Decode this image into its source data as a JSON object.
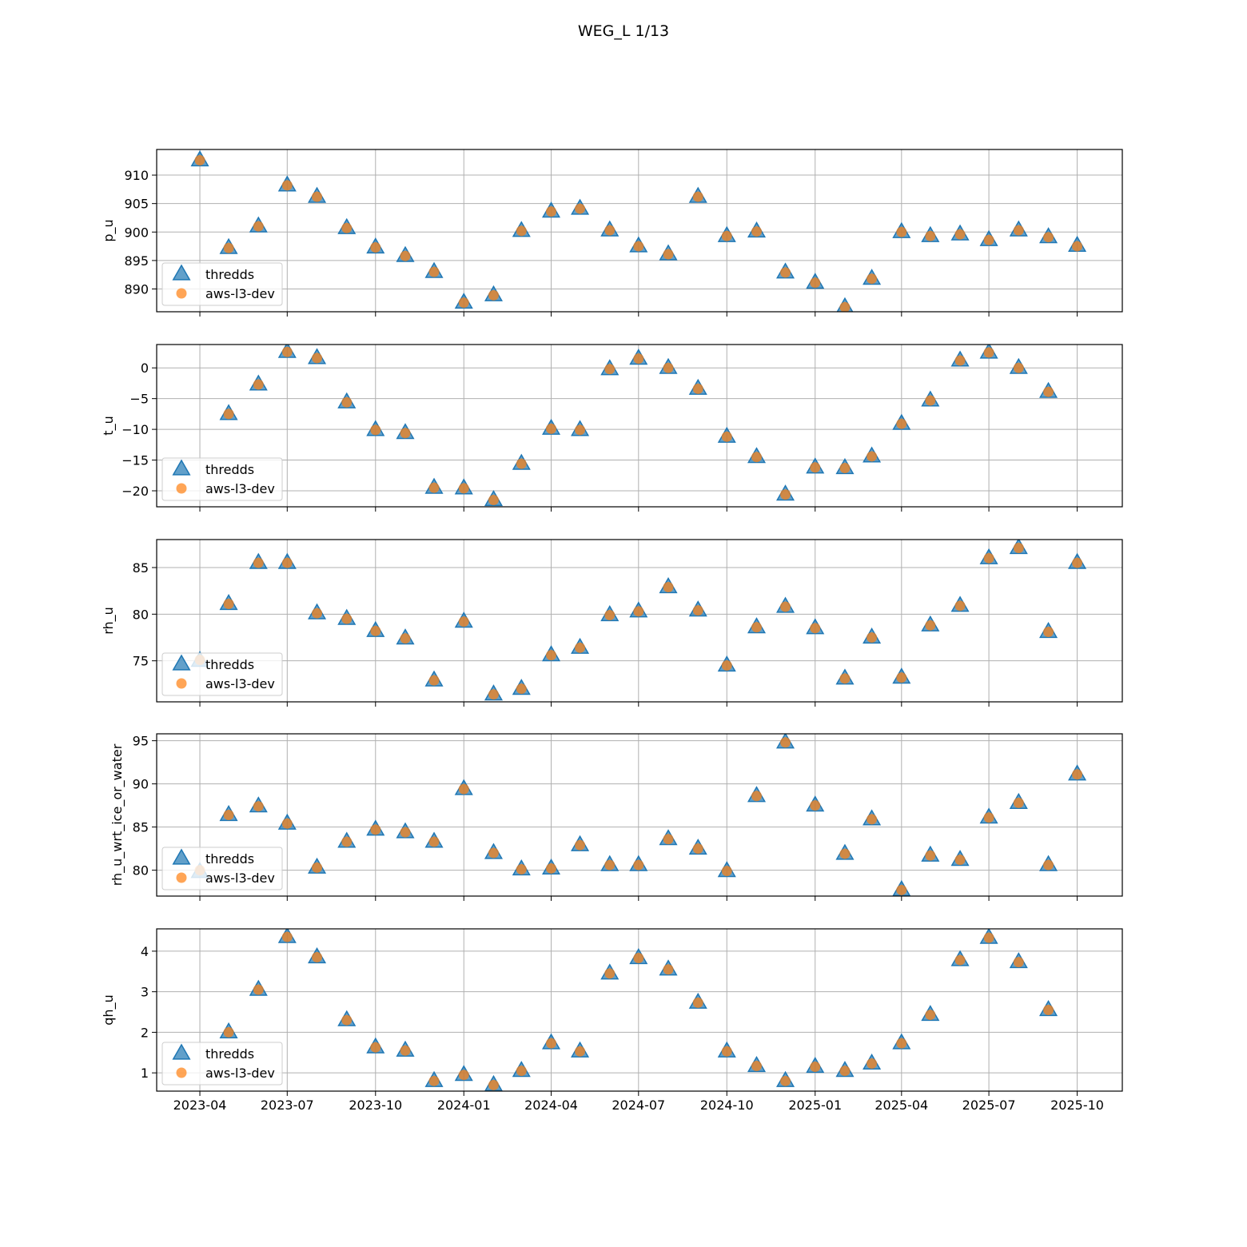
{
  "figure": {
    "title": "WEG_L 1/13"
  },
  "colors": {
    "thredds": "#1f77b4",
    "aws": "#ff7f0e",
    "grid": "#b0b0b0"
  },
  "chart_data": [
    {
      "type": "scatter",
      "ylabel": "p_u",
      "ylim": [
        886.0,
        914.5
      ],
      "yticks": [
        890,
        895,
        900,
        905,
        910
      ],
      "ytick_labels": [
        "890",
        "895",
        "900",
        "905",
        "910"
      ],
      "xlim": [
        "2023-02-15",
        "2025-11-17"
      ],
      "x": [
        "2023-04-01",
        "2023-05-01",
        "2023-06-01",
        "2023-07-01",
        "2023-08-01",
        "2023-09-01",
        "2023-10-01",
        "2023-11-01",
        "2023-12-01",
        "2024-01-01",
        "2024-02-01",
        "2024-03-01",
        "2024-04-01",
        "2024-05-01",
        "2024-06-01",
        "2024-07-01",
        "2024-08-01",
        "2024-09-01",
        "2024-10-01",
        "2024-11-01",
        "2024-12-01",
        "2025-01-01",
        "2025-02-01",
        "2025-03-01",
        "2025-04-01",
        "2025-05-01",
        "2025-06-01",
        "2025-07-01",
        "2025-08-01",
        "2025-09-01",
        "2025-10-01"
      ],
      "grid": true,
      "legend": "lower left",
      "series": [
        {
          "name": "thredds",
          "marker": "triangle",
          "values": [
            912.6,
            897.2,
            901.0,
            908.2,
            906.2,
            900.7,
            897.3,
            895.8,
            893.0,
            887.6,
            888.9,
            900.2,
            903.6,
            904.1,
            900.3,
            897.5,
            896.1,
            906.2,
            899.3,
            900.1,
            892.9,
            891.1,
            886.8,
            891.8,
            900.0,
            899.3,
            899.6,
            898.6,
            900.3,
            899.1,
            897.6
          ]
        },
        {
          "name": "aws-l3-dev",
          "marker": "circle",
          "values": [
            912.6,
            897.2,
            901.0,
            908.2,
            906.2,
            900.7,
            897.3,
            895.8,
            893.0,
            887.6,
            888.9,
            900.2,
            903.6,
            904.1,
            900.3,
            897.5,
            896.1,
            906.2,
            899.3,
            900.1,
            892.9,
            891.1,
            886.8,
            891.8,
            900.0,
            899.3,
            899.6,
            898.6,
            900.3,
            899.1,
            897.5
          ]
        }
      ]
    },
    {
      "type": "scatter",
      "ylabel": "t_u",
      "ylim": [
        -22.6,
        3.8
      ],
      "yticks": [
        -20,
        -15,
        -10,
        -5,
        0
      ],
      "ytick_labels": [
        "−20",
        "−15",
        "−10",
        "−5",
        "0"
      ],
      "xlim": [
        "2023-02-15",
        "2025-11-17"
      ],
      "x": [
        "2023-05-01",
        "2023-06-01",
        "2023-07-01",
        "2023-08-01",
        "2023-09-01",
        "2023-10-01",
        "2023-11-01",
        "2023-12-01",
        "2024-01-01",
        "2024-02-01",
        "2024-03-01",
        "2024-04-01",
        "2024-05-01",
        "2024-06-01",
        "2024-07-01",
        "2024-08-01",
        "2024-09-01",
        "2024-10-01",
        "2024-11-01",
        "2024-12-01",
        "2025-01-01",
        "2025-02-01",
        "2025-03-01",
        "2025-04-01",
        "2025-05-01",
        "2025-06-01",
        "2025-07-01",
        "2025-08-01",
        "2025-09-01"
      ],
      "grid": true,
      "legend": "lower left",
      "series": [
        {
          "name": "thredds",
          "marker": "triangle",
          "values": [
            -7.5,
            -2.7,
            2.6,
            1.6,
            -5.6,
            -10.1,
            -10.6,
            -19.5,
            -19.6,
            -21.5,
            -15.6,
            -9.9,
            -10.1,
            -0.2,
            1.5,
            0.0,
            -3.4,
            -11.2,
            -14.5,
            -20.6,
            -16.2,
            -16.3,
            -14.4,
            -9.1,
            -5.3,
            1.2,
            2.5,
            0.0,
            -3.9
          ]
        },
        {
          "name": "aws-l3-dev",
          "marker": "circle",
          "values": [
            -7.5,
            -2.7,
            2.6,
            1.6,
            -5.6,
            -10.1,
            -10.6,
            -19.5,
            -19.6,
            -21.5,
            -15.6,
            -9.9,
            -10.1,
            -0.2,
            1.5,
            0.0,
            -3.4,
            -11.2,
            -14.5,
            -20.6,
            -16.2,
            -16.3,
            -14.4,
            -9.1,
            -5.3,
            1.2,
            2.5,
            0.0,
            -3.9
          ]
        }
      ]
    },
    {
      "type": "scatter",
      "ylabel": "rh_u",
      "ylim": [
        70.6,
        88.0
      ],
      "yticks": [
        75,
        80,
        85
      ],
      "ytick_labels": [
        "75",
        "80",
        "85"
      ],
      "xlim": [
        "2023-02-15",
        "2025-11-17"
      ],
      "x": [
        "2023-04-01",
        "2023-05-01",
        "2023-06-01",
        "2023-07-01",
        "2023-08-01",
        "2023-09-01",
        "2023-10-01",
        "2023-11-01",
        "2023-12-01",
        "2024-01-01",
        "2024-02-01",
        "2024-03-01",
        "2024-04-01",
        "2024-05-01",
        "2024-06-01",
        "2024-07-01",
        "2024-08-01",
        "2024-09-01",
        "2024-10-01",
        "2024-11-01",
        "2024-12-01",
        "2025-01-01",
        "2025-02-01",
        "2025-03-01",
        "2025-04-01",
        "2025-05-01",
        "2025-06-01",
        "2025-07-01",
        "2025-08-01",
        "2025-09-01",
        "2025-10-01"
      ],
      "grid": true,
      "legend": "lower left",
      "series": [
        {
          "name": "thredds",
          "marker": "triangle",
          "values": [
            75.0,
            81.1,
            85.5,
            85.5,
            80.1,
            79.5,
            78.2,
            77.4,
            72.9,
            79.2,
            71.4,
            72.0,
            75.6,
            76.4,
            79.9,
            80.3,
            82.9,
            80.4,
            74.5,
            78.6,
            80.8,
            78.5,
            73.1,
            77.5,
            73.2,
            78.8,
            80.9,
            86.0,
            87.1,
            78.1,
            85.5
          ]
        },
        {
          "name": "aws-l3-dev",
          "marker": "circle",
          "values": [
            75.1,
            81.1,
            85.5,
            85.5,
            80.1,
            79.5,
            78.2,
            77.4,
            72.9,
            79.2,
            71.4,
            72.0,
            75.6,
            76.4,
            79.9,
            80.3,
            82.9,
            80.4,
            74.5,
            78.6,
            80.8,
            78.5,
            73.1,
            77.5,
            73.2,
            78.8,
            80.9,
            86.0,
            87.1,
            78.1,
            85.5
          ]
        }
      ]
    },
    {
      "type": "scatter",
      "ylabel": "rh_u_wrt_ice_or_water",
      "ylim": [
        77.0,
        95.8
      ],
      "yticks": [
        80,
        85,
        90,
        95
      ],
      "ytick_labels": [
        "80",
        "85",
        "90",
        "95"
      ],
      "xlim": [
        "2023-02-15",
        "2025-11-17"
      ],
      "x": [
        "2023-04-01",
        "2023-05-01",
        "2023-06-01",
        "2023-07-01",
        "2023-08-01",
        "2023-09-01",
        "2023-10-01",
        "2023-11-01",
        "2023-12-01",
        "2024-01-01",
        "2024-02-01",
        "2024-03-01",
        "2024-04-01",
        "2024-05-01",
        "2024-06-01",
        "2024-07-01",
        "2024-08-01",
        "2024-09-01",
        "2024-10-01",
        "2024-11-01",
        "2024-12-01",
        "2025-01-01",
        "2025-02-01",
        "2025-03-01",
        "2025-04-01",
        "2025-05-01",
        "2025-06-01",
        "2025-07-01",
        "2025-08-01",
        "2025-09-01",
        "2025-10-01"
      ],
      "grid": true,
      "legend": "lower left",
      "series": [
        {
          "name": "thredds",
          "marker": "triangle",
          "values": [
            79.8,
            86.4,
            87.4,
            85.4,
            80.3,
            83.3,
            84.7,
            84.4,
            83.3,
            89.4,
            82.0,
            80.1,
            80.2,
            82.9,
            80.6,
            80.6,
            83.6,
            82.5,
            79.9,
            88.6,
            94.8,
            87.5,
            81.9,
            85.9,
            77.7,
            81.7,
            81.2,
            86.1,
            87.8,
            80.6,
            91.1
          ]
        },
        {
          "name": "aws-l3-dev",
          "marker": "circle",
          "values": [
            80.0,
            86.4,
            87.4,
            85.4,
            80.3,
            83.3,
            84.7,
            84.4,
            83.3,
            89.4,
            82.0,
            80.1,
            80.2,
            82.9,
            80.6,
            80.6,
            83.6,
            82.5,
            79.9,
            88.6,
            94.8,
            87.5,
            81.9,
            85.9,
            77.7,
            81.7,
            81.2,
            86.1,
            87.8,
            80.6,
            91.1
          ]
        }
      ]
    },
    {
      "type": "scatter",
      "ylabel": "qh_u",
      "ylim": [
        0.55,
        4.55
      ],
      "yticks": [
        1,
        2,
        3,
        4
      ],
      "ytick_labels": [
        "1",
        "2",
        "3",
        "4"
      ],
      "xlim": [
        "2023-02-15",
        "2025-11-17"
      ],
      "xtick_dates": [
        "2023-04-01",
        "2023-07-01",
        "2023-10-01",
        "2024-01-01",
        "2024-04-01",
        "2024-07-01",
        "2024-10-01",
        "2025-01-01",
        "2025-04-01",
        "2025-07-01",
        "2025-10-01"
      ],
      "xtick_labels": [
        "2023-04",
        "2023-07",
        "2023-10",
        "2024-01",
        "2024-04",
        "2024-07",
        "2024-10",
        "2025-01",
        "2025-04",
        "2025-07",
        "2025-10"
      ],
      "x": [
        "2023-05-01",
        "2023-06-01",
        "2023-07-01",
        "2023-08-01",
        "2023-09-01",
        "2023-10-01",
        "2023-11-01",
        "2023-12-01",
        "2024-01-01",
        "2024-02-01",
        "2024-03-01",
        "2024-04-01",
        "2024-05-01",
        "2024-06-01",
        "2024-07-01",
        "2024-08-01",
        "2024-09-01",
        "2024-10-01",
        "2024-11-01",
        "2024-12-01",
        "2025-01-01",
        "2025-02-01",
        "2025-03-01",
        "2025-04-01",
        "2025-05-01",
        "2025-06-01",
        "2025-07-01",
        "2025-08-01",
        "2025-09-01"
      ],
      "grid": true,
      "legend": "lower left",
      "series": [
        {
          "name": "thredds",
          "marker": "triangle",
          "values": [
            2.0,
            3.05,
            4.35,
            3.85,
            2.3,
            1.63,
            1.55,
            0.8,
            0.95,
            0.7,
            1.05,
            1.73,
            1.53,
            3.45,
            3.83,
            3.55,
            2.73,
            1.53,
            1.17,
            0.8,
            1.15,
            1.05,
            1.23,
            1.73,
            2.43,
            3.78,
            4.33,
            3.73,
            2.55
          ]
        },
        {
          "name": "aws-l3-dev",
          "marker": "circle",
          "values": [
            2.0,
            3.05,
            4.35,
            3.85,
            2.3,
            1.63,
            1.55,
            0.8,
            0.95,
            0.7,
            1.05,
            1.73,
            1.53,
            3.45,
            3.83,
            3.55,
            2.73,
            1.53,
            1.17,
            0.8,
            1.15,
            1.05,
            1.23,
            1.73,
            2.43,
            3.78,
            4.33,
            3.73,
            2.55
          ]
        }
      ]
    }
  ]
}
